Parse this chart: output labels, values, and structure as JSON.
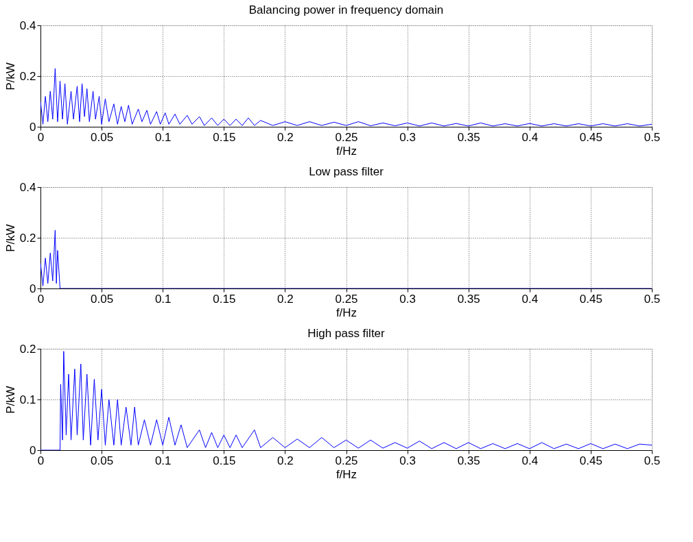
{
  "chart_data": [
    {
      "type": "line",
      "title": "Balancing power in frequency domain",
      "xlabel": "f/Hz",
      "ylabel": "P/kW",
      "color": "#0000ff",
      "grid": true,
      "xlim": [
        0,
        0.5
      ],
      "xticks": [
        0,
        0.05,
        0.1,
        0.15,
        0.2,
        0.25,
        0.3,
        0.35,
        0.4,
        0.45,
        0.5
      ],
      "ylim": [
        0,
        0.4
      ],
      "yticks": [
        0,
        0.2,
        0.4
      ],
      "x": [
        0,
        0.002,
        0.004,
        0.006,
        0.008,
        0.01,
        0.012,
        0.014,
        0.016,
        0.018,
        0.02,
        0.022,
        0.025,
        0.027,
        0.03,
        0.032,
        0.034,
        0.036,
        0.038,
        0.04,
        0.043,
        0.045,
        0.048,
        0.05,
        0.053,
        0.056,
        0.06,
        0.063,
        0.066,
        0.069,
        0.072,
        0.075,
        0.08,
        0.083,
        0.087,
        0.09,
        0.095,
        0.098,
        0.102,
        0.105,
        0.11,
        0.114,
        0.12,
        0.124,
        0.13,
        0.134,
        0.14,
        0.145,
        0.15,
        0.155,
        0.16,
        0.165,
        0.17,
        0.175,
        0.18,
        0.19,
        0.2,
        0.21,
        0.22,
        0.23,
        0.24,
        0.25,
        0.26,
        0.27,
        0.28,
        0.29,
        0.3,
        0.31,
        0.32,
        0.33,
        0.34,
        0.35,
        0.36,
        0.37,
        0.38,
        0.39,
        0.4,
        0.41,
        0.42,
        0.43,
        0.44,
        0.45,
        0.46,
        0.47,
        0.48,
        0.49,
        0.5
      ],
      "values": [
        0.1,
        0.01,
        0.12,
        0.02,
        0.14,
        0.03,
        0.23,
        0.02,
        0.18,
        0.03,
        0.17,
        0.01,
        0.14,
        0.03,
        0.16,
        0.02,
        0.17,
        0.04,
        0.15,
        0.02,
        0.14,
        0.03,
        0.12,
        0.01,
        0.11,
        0.02,
        0.09,
        0.01,
        0.08,
        0.02,
        0.085,
        0.01,
        0.07,
        0.02,
        0.065,
        0.01,
        0.06,
        0.01,
        0.055,
        0.01,
        0.05,
        0.01,
        0.045,
        0.01,
        0.04,
        0.005,
        0.035,
        0.005,
        0.03,
        0.005,
        0.03,
        0.005,
        0.035,
        0.005,
        0.025,
        0.005,
        0.02,
        0.005,
        0.02,
        0.005,
        0.018,
        0.005,
        0.02,
        0.004,
        0.015,
        0.004,
        0.015,
        0.003,
        0.015,
        0.003,
        0.013,
        0.003,
        0.015,
        0.003,
        0.012,
        0.003,
        0.013,
        0.003,
        0.012,
        0.003,
        0.012,
        0.003,
        0.012,
        0.003,
        0.012,
        0.003,
        0.01
      ]
    },
    {
      "type": "line",
      "title": "Low pass filter",
      "xlabel": "f/Hz",
      "ylabel": "P/kW",
      "color": "#0000ff",
      "grid": true,
      "xlim": [
        0,
        0.5
      ],
      "xticks": [
        0,
        0.05,
        0.1,
        0.15,
        0.2,
        0.25,
        0.3,
        0.35,
        0.4,
        0.45,
        0.5
      ],
      "ylim": [
        0,
        0.4
      ],
      "yticks": [
        0,
        0.2,
        0.4
      ],
      "x": [
        0,
        0.002,
        0.004,
        0.006,
        0.008,
        0.01,
        0.012,
        0.013,
        0.014,
        0.016,
        0.5
      ],
      "values": [
        0.1,
        0.01,
        0.12,
        0.02,
        0.14,
        0.03,
        0.23,
        0.02,
        0.15,
        0,
        0
      ]
    },
    {
      "type": "line",
      "title": "High pass filter",
      "xlabel": "f/Hz",
      "ylabel": "P/kW",
      "color": "#0000ff",
      "grid": true,
      "xlim": [
        0,
        0.5
      ],
      "xticks": [
        0,
        0.05,
        0.1,
        0.15,
        0.2,
        0.25,
        0.3,
        0.35,
        0.4,
        0.45,
        0.5
      ],
      "ylim": [
        0,
        0.2
      ],
      "yticks": [
        0,
        0.1,
        0.2
      ],
      "x": [
        0,
        0.016,
        0.0165,
        0.018,
        0.019,
        0.021,
        0.023,
        0.025,
        0.028,
        0.03,
        0.033,
        0.035,
        0.038,
        0.041,
        0.044,
        0.047,
        0.05,
        0.053,
        0.056,
        0.06,
        0.063,
        0.066,
        0.07,
        0.074,
        0.077,
        0.08,
        0.085,
        0.09,
        0.095,
        0.1,
        0.105,
        0.11,
        0.115,
        0.12,
        0.13,
        0.135,
        0.14,
        0.145,
        0.15,
        0.155,
        0.16,
        0.165,
        0.175,
        0.18,
        0.19,
        0.2,
        0.21,
        0.22,
        0.23,
        0.24,
        0.25,
        0.26,
        0.27,
        0.28,
        0.29,
        0.3,
        0.31,
        0.32,
        0.33,
        0.34,
        0.35,
        0.36,
        0.37,
        0.38,
        0.39,
        0.4,
        0.41,
        0.42,
        0.43,
        0.44,
        0.45,
        0.46,
        0.47,
        0.48,
        0.49,
        0.5
      ],
      "values": [
        0,
        0,
        0.13,
        0.02,
        0.195,
        0.03,
        0.15,
        0.02,
        0.16,
        0.03,
        0.17,
        0.02,
        0.15,
        0.01,
        0.14,
        0.02,
        0.12,
        0.01,
        0.1,
        0.01,
        0.1,
        0.01,
        0.085,
        0.01,
        0.085,
        0.01,
        0.06,
        0.01,
        0.06,
        0.01,
        0.065,
        0.01,
        0.05,
        0.005,
        0.04,
        0.005,
        0.035,
        0.005,
        0.03,
        0.005,
        0.03,
        0.005,
        0.04,
        0.005,
        0.025,
        0.005,
        0.022,
        0.005,
        0.025,
        0.005,
        0.02,
        0.004,
        0.02,
        0.004,
        0.015,
        0.004,
        0.018,
        0.003,
        0.015,
        0.003,
        0.015,
        0.003,
        0.013,
        0.003,
        0.013,
        0.003,
        0.015,
        0.003,
        0.012,
        0.003,
        0.013,
        0.003,
        0.012,
        0.003,
        0.012,
        0.01
      ]
    }
  ]
}
